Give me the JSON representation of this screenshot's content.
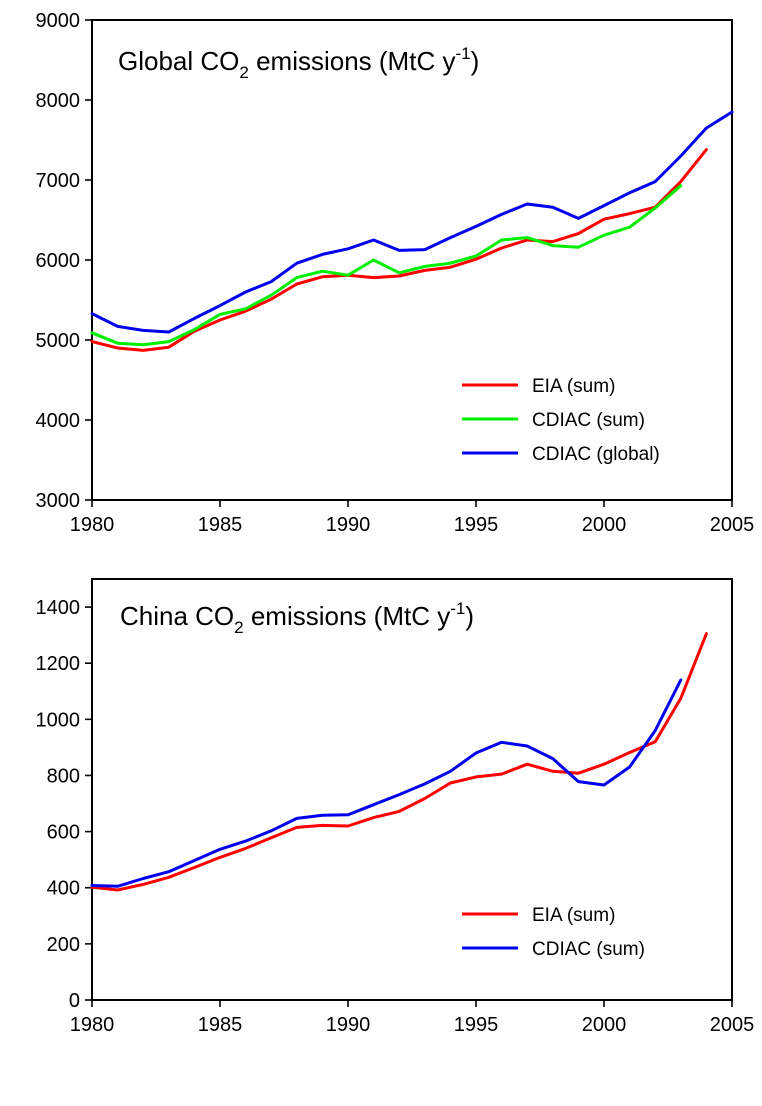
{
  "chart_data": [
    {
      "type": "line",
      "title": {
        "pre": "Global CO",
        "sub": "2",
        "mid": " emissions (MtC y",
        "sup": "-1",
        "post": ")"
      },
      "xlim": [
        1980,
        2005
      ],
      "ylim": [
        3000,
        9000
      ],
      "xticks": [
        1980,
        1985,
        1990,
        1995,
        2000,
        2005
      ],
      "yticks": [
        3000,
        4000,
        5000,
        6000,
        7000,
        8000,
        9000
      ],
      "legend_position": "bottom-right",
      "series": [
        {
          "name": "EIA (sum)",
          "color": "#ff0000",
          "x": [
            1980,
            1981,
            1982,
            1983,
            1984,
            1985,
            1986,
            1987,
            1988,
            1989,
            1990,
            1991,
            1992,
            1993,
            1994,
            1995,
            1996,
            1997,
            1998,
            1999,
            2000,
            2001,
            2002,
            2003,
            2004
          ],
          "y": [
            4980,
            4900,
            4870,
            4910,
            5110,
            5250,
            5360,
            5510,
            5700,
            5790,
            5810,
            5780,
            5800,
            5870,
            5910,
            6010,
            6150,
            6250,
            6230,
            6330,
            6510,
            6580,
            6660,
            6980,
            7380
          ]
        },
        {
          "name": "CDIAC (sum)",
          "color": "#00ee00",
          "x": [
            1980,
            1981,
            1982,
            1983,
            1984,
            1985,
            1986,
            1987,
            1988,
            1989,
            1990,
            1991,
            1992,
            1993,
            1994,
            1995,
            1996,
            1997,
            1998,
            1999,
            2000,
            2001,
            2002,
            2003
          ],
          "y": [
            5090,
            4960,
            4940,
            4980,
            5130,
            5320,
            5390,
            5560,
            5780,
            5860,
            5810,
            6000,
            5840,
            5920,
            5960,
            6050,
            6250,
            6280,
            6180,
            6160,
            6310,
            6410,
            6650,
            6930
          ]
        },
        {
          "name": "CDIAC (global)",
          "color": "#0000ee",
          "x": [
            1980,
            1981,
            1982,
            1983,
            1984,
            1985,
            1986,
            1987,
            1988,
            1989,
            1990,
            1991,
            1992,
            1993,
            1994,
            1995,
            1996,
            1997,
            1998,
            1999,
            2000,
            2001,
            2002,
            2003,
            2004,
            2005
          ],
          "y": [
            5330,
            5170,
            5120,
            5100,
            5270,
            5430,
            5600,
            5730,
            5960,
            6070,
            6140,
            6250,
            6120,
            6130,
            6280,
            6420,
            6570,
            6700,
            6660,
            6520,
            6680,
            6840,
            6980,
            7300,
            7650,
            7850
          ]
        }
      ]
    },
    {
      "type": "line",
      "title": {
        "pre": "China CO",
        "sub": "2",
        "mid": " emissions (MtC y",
        "sup": "-1",
        "post": ")"
      },
      "xlim": [
        1980,
        2005
      ],
      "ylim": [
        0,
        1500
      ],
      "xticks": [
        1980,
        1985,
        1990,
        1995,
        2000,
        2005
      ],
      "yticks": [
        0,
        200,
        400,
        600,
        800,
        1000,
        1200,
        1400
      ],
      "legend_position": "bottom-right",
      "series": [
        {
          "name": "EIA (sum)",
          "color": "#ff0000",
          "x": [
            1980,
            1981,
            1982,
            1983,
            1984,
            1985,
            1986,
            1987,
            1988,
            1989,
            1990,
            1991,
            1992,
            1993,
            1994,
            1995,
            1996,
            1997,
            1998,
            1999,
            2000,
            2001,
            2002,
            2003,
            2004
          ],
          "y": [
            402,
            392,
            412,
            437,
            472,
            508,
            540,
            578,
            615,
            622,
            620,
            650,
            672,
            718,
            773,
            795,
            805,
            840,
            815,
            808,
            840,
            882,
            920,
            1075,
            1305
          ]
        },
        {
          "name": "CDIAC (sum)",
          "color": "#0000ee",
          "x": [
            1980,
            1981,
            1982,
            1983,
            1984,
            1985,
            1986,
            1987,
            1988,
            1989,
            1990,
            1991,
            1992,
            1993,
            1994,
            1995,
            1996,
            1997,
            1998,
            1999,
            2000,
            2001,
            2002,
            2003
          ],
          "y": [
            408,
            405,
            433,
            457,
            497,
            537,
            566,
            603,
            647,
            658,
            660,
            696,
            732,
            770,
            815,
            880,
            918,
            905,
            860,
            778,
            766,
            830,
            960,
            1140
          ]
        }
      ]
    }
  ]
}
